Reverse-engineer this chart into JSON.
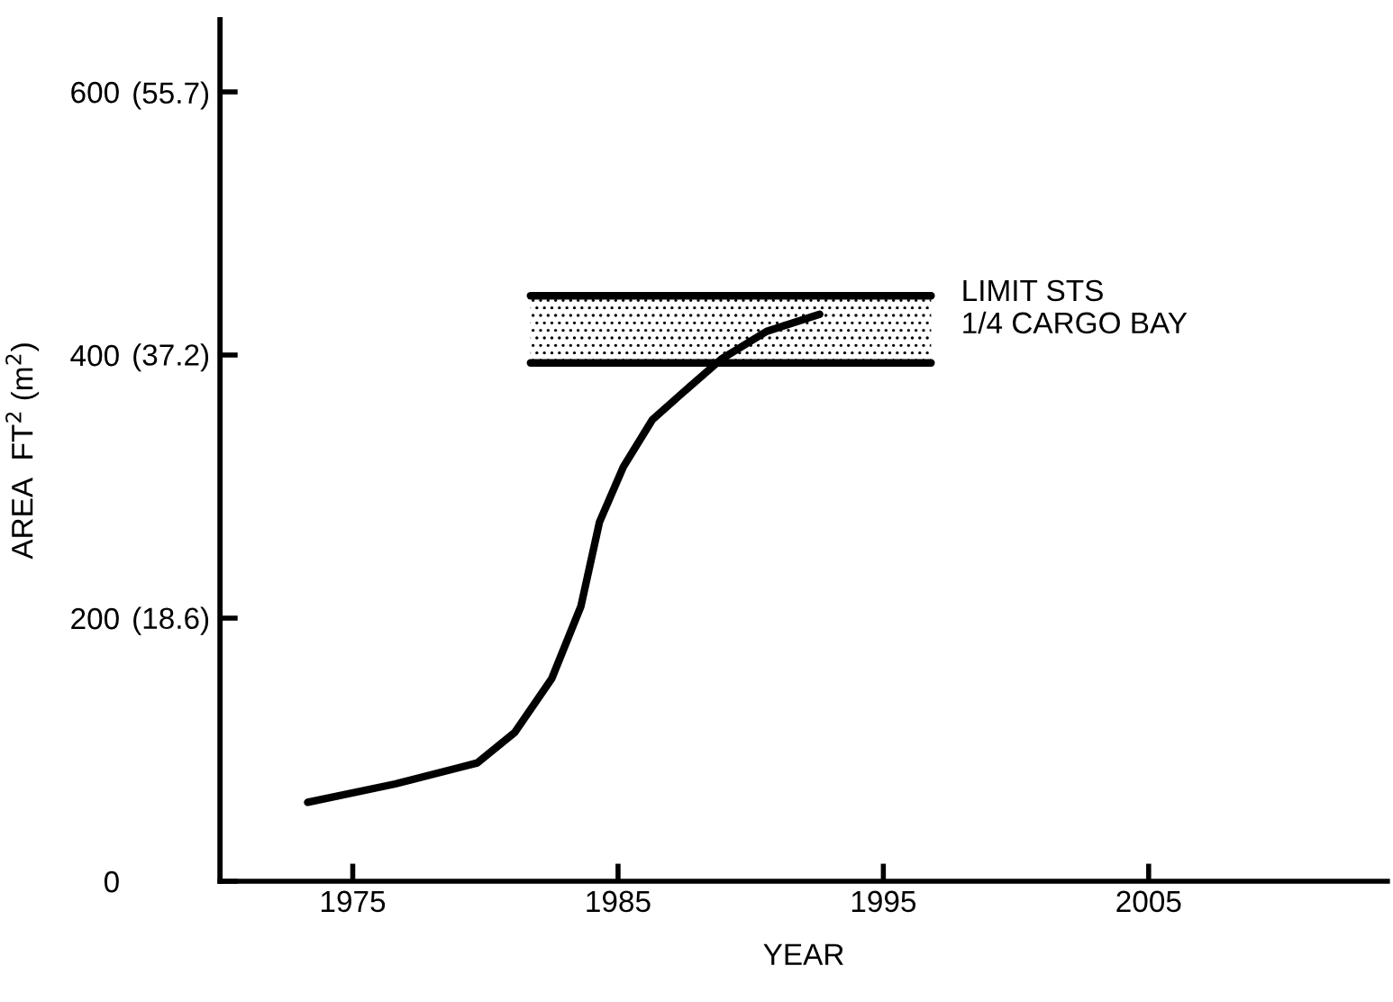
{
  "chart_data": {
    "type": "line",
    "xlabel": "YEAR",
    "ylabel": "AREA  FT$^{2}$ (m$^{2}$)",
    "xlim": [
      1970,
      2014
    ],
    "xticks": [
      1975,
      1985,
      1995,
      2005
    ],
    "ylim": [
      0,
      655
    ],
    "yticks": [
      0,
      200,
      400,
      600
    ],
    "y2lim": [
      0,
      60.85
    ],
    "y2ticks": [
      {
        "value": 18.6,
        "label": "(18.6)"
      },
      {
        "value": 37.2,
        "label": "(37.2)"
      },
      {
        "value": 55.7,
        "label": "(55.7)"
      }
    ],
    "grid": false,
    "marker": "none",
    "line_style": "solid",
    "series": [
      {
        "color": "#000000",
        "x": [
          1973.3,
          1976.6,
          1979.7,
          1981.1,
          1982.5,
          1983.6,
          1984.3,
          1985.2,
          1986.3,
          1987.7,
          1988.9,
          1990.6,
          1992.6
        ],
        "values": [
          60,
          74,
          90,
          113,
          154,
          209,
          273,
          315,
          351,
          376,
          397,
          418,
          431
        ]
      },
      {
        "color": "#000000",
        "x": [
          1981.7,
          1996.8
        ],
        "values": [
          394,
          394
        ]
      },
      {
        "color": "#000000",
        "x": [
          1981.7,
          1996.8
        ],
        "values": [
          445,
          445
        ],
        "lower": [
          394,
          394
        ],
        "upper": [
          445,
          445
        ]
      }
    ],
    "annotations": [
      "LIMIT STS\n1/4 CARGO BAY"
    ]
  }
}
